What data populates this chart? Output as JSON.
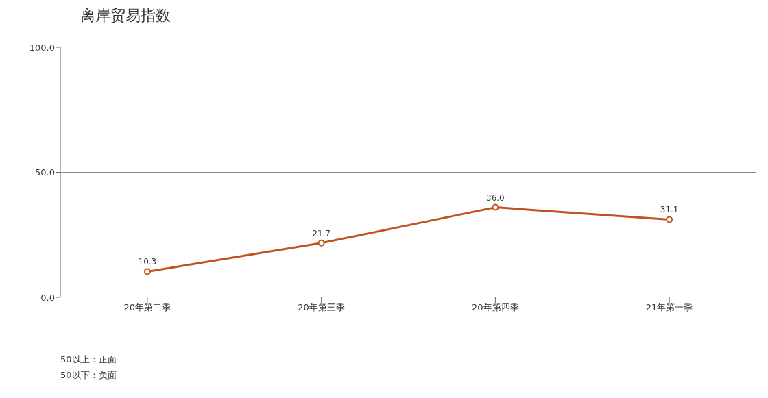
{
  "chart_data": {
    "type": "line",
    "title": "离岸贸易指数",
    "categories": [
      "20年第二季",
      "20年第三季",
      "20年第四季",
      "21年第一季"
    ],
    "series": [
      {
        "color": "#c1531f",
        "values": [
          10.3,
          21.7,
          36.0,
          31.1
        ],
        "value_labels": [
          "10.3",
          "21.7",
          "36.0",
          "31.1"
        ]
      }
    ],
    "ylim": [
      0,
      100
    ],
    "yticks": [
      {
        "value": 0,
        "label": "0.0"
      },
      {
        "value": 50,
        "label": "50.0"
      },
      {
        "value": 100,
        "label": "100.0"
      }
    ],
    "ref_lines": [
      {
        "axis": "y",
        "value": 50,
        "color": "#888888"
      }
    ],
    "marker": "circle",
    "line_style": "solid",
    "grid": false,
    "legend": false,
    "annotations": [
      "50以上：正面",
      "50以下：负面"
    ]
  }
}
